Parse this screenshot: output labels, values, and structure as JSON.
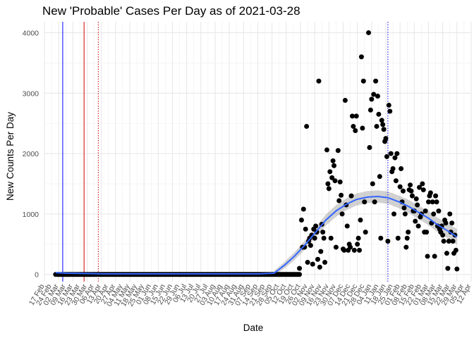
{
  "chart_data": {
    "type": "scatter",
    "title": "New 'Probable' Cases Per Day as of 2021-03-28",
    "xlabel": "Date",
    "ylabel": "New Counts Per Day",
    "x_range": [
      "2020-02-17",
      "2021-04-12"
    ],
    "ylim": [
      -120,
      4180
    ],
    "y_ticks": [
      0,
      1000,
      2000,
      3000,
      4000
    ],
    "x_tick_labels": [
      "17 Feb",
      "02 Mar",
      "16 Mar",
      "30 Mar",
      "13 Apr",
      "27 Apr",
      "11 May",
      "25 May",
      "08 Jun",
      "22 Jun",
      "06 Jul",
      "20 Jul",
      "03 Aug",
      "17 Aug",
      "31 Aug",
      "14 Sep",
      "28 Sep",
      "12 Oct",
      "26 Oct",
      "09 Nov",
      "23 Nov",
      "07 Dec",
      "21 Dec",
      "04 Jan",
      "18 Jan",
      "01 Feb",
      "15 Feb",
      "01 Mar",
      "15 Mar",
      "29 Mar",
      "12 Apr"
    ],
    "x_tick_labels_secondary": [
      "24 Feb",
      "09 Mar",
      "23 Mar",
      "06 Apr",
      "20 Apr",
      "04 May",
      "18 May",
      "01 Jun",
      "15 Jun",
      "29 Jun",
      "13 Jul",
      "27 Jul",
      "10 Aug",
      "24 Aug",
      "07 Sep",
      "21 Sep",
      "05 Oct",
      "19 Oct",
      "02 Nov",
      "16 Nov",
      "30 Nov",
      "14 Dec",
      "28 Dec",
      "11 Jan",
      "25 Jan",
      "08 Feb",
      "22 Feb",
      "08 Mar",
      "22 Mar",
      "05 Apr"
    ],
    "grid": true,
    "vlines": [
      {
        "date": "2020-03-06",
        "color": "#0000ff",
        "style": "solid"
      },
      {
        "date": "2020-03-27",
        "color": "#d00000",
        "style": "solid"
      },
      {
        "date": "2020-04-10",
        "color": "#d00000",
        "style": "dotted"
      },
      {
        "date": "2021-01-20",
        "color": "#0000ff",
        "style": "dotted"
      }
    ],
    "series": [
      {
        "type": "scatter",
        "color": "#000000",
        "zeros_from": "2020-03-01",
        "zeros_to": "2020-10-25",
        "points": [
          [
            "2020-02-28",
            0
          ],
          [
            "2020-10-25",
            100
          ],
          [
            "2020-10-27",
            900
          ],
          [
            "2020-10-28",
            450
          ],
          [
            "2020-10-29",
            1080
          ],
          [
            "2020-10-30",
            450
          ],
          [
            "2020-10-31",
            750
          ],
          [
            "2020-11-01",
            2450
          ],
          [
            "2020-11-02",
            200
          ],
          [
            "2020-11-03",
            550
          ],
          [
            "2020-11-04",
            600
          ],
          [
            "2020-11-05",
            480
          ],
          [
            "2020-11-06",
            650
          ],
          [
            "2020-11-07",
            170
          ],
          [
            "2020-11-08",
            750
          ],
          [
            "2020-11-09",
            600
          ],
          [
            "2020-11-10",
            800
          ],
          [
            "2020-11-11",
            700
          ],
          [
            "2020-11-12",
            250
          ],
          [
            "2020-11-13",
            3200
          ],
          [
            "2020-11-14",
            120
          ],
          [
            "2020-11-15",
            380
          ],
          [
            "2020-11-16",
            830
          ],
          [
            "2020-11-17",
            700
          ],
          [
            "2020-11-18",
            600
          ],
          [
            "2020-11-19",
            200
          ],
          [
            "2020-11-21",
            2060
          ],
          [
            "2020-11-22",
            1500
          ],
          [
            "2020-11-23",
            1420
          ],
          [
            "2020-11-24",
            1700
          ],
          [
            "2020-11-25",
            600
          ],
          [
            "2020-11-26",
            1600
          ],
          [
            "2020-11-27",
            1880
          ],
          [
            "2020-11-28",
            1800
          ],
          [
            "2020-11-29",
            1550
          ],
          [
            "2020-11-30",
            450
          ],
          [
            "2020-12-02",
            2050
          ],
          [
            "2020-12-03",
            1220
          ],
          [
            "2020-12-04",
            1530
          ],
          [
            "2020-12-05",
            1310
          ],
          [
            "2020-12-06",
            1000
          ],
          [
            "2020-12-07",
            420
          ],
          [
            "2020-12-08",
            400
          ],
          [
            "2020-12-09",
            2880
          ],
          [
            "2020-12-10",
            1150
          ],
          [
            "2020-12-11",
            800
          ],
          [
            "2020-12-12",
            400
          ],
          [
            "2020-12-13",
            500
          ],
          [
            "2020-12-14",
            450
          ],
          [
            "2020-12-15",
            1300
          ],
          [
            "2020-12-16",
            2620
          ],
          [
            "2020-12-17",
            2450
          ],
          [
            "2020-12-18",
            400
          ],
          [
            "2020-12-19",
            2380
          ],
          [
            "2020-12-20",
            2620
          ],
          [
            "2020-12-21",
            500
          ],
          [
            "2020-12-22",
            600
          ],
          [
            "2020-12-23",
            400
          ],
          [
            "2020-12-24",
            900
          ],
          [
            "2020-12-25",
            3600
          ],
          [
            "2020-12-26",
            2420
          ],
          [
            "2020-12-27",
            3200
          ],
          [
            "2020-12-28",
            1200
          ],
          [
            "2020-12-29",
            700
          ],
          [
            "2021-01-01",
            4000
          ],
          [
            "2021-01-02",
            2100
          ],
          [
            "2021-01-03",
            2720
          ],
          [
            "2021-01-04",
            2900
          ],
          [
            "2021-01-05",
            1500
          ],
          [
            "2021-01-06",
            2980
          ],
          [
            "2021-01-07",
            1200
          ],
          [
            "2021-01-08",
            3200
          ],
          [
            "2021-01-09",
            2450
          ],
          [
            "2021-01-10",
            2950
          ],
          [
            "2021-01-11",
            2650
          ],
          [
            "2021-01-12",
            1620
          ],
          [
            "2021-01-13",
            600
          ],
          [
            "2021-01-14",
            2550
          ],
          [
            "2021-01-15",
            2480
          ],
          [
            "2021-01-16",
            2400
          ],
          [
            "2021-01-17",
            2200
          ],
          [
            "2021-01-18",
            2250
          ],
          [
            "2021-01-19",
            1950
          ],
          [
            "2021-01-20",
            550
          ],
          [
            "2021-01-21",
            2800
          ],
          [
            "2021-01-22",
            2700
          ],
          [
            "2021-01-23",
            2000
          ],
          [
            "2021-01-24",
            1700
          ],
          [
            "2021-01-25",
            1750
          ],
          [
            "2021-01-26",
            1000
          ],
          [
            "2021-01-27",
            1930
          ],
          [
            "2021-01-28",
            1550
          ],
          [
            "2021-01-29",
            2000
          ],
          [
            "2021-01-30",
            600
          ],
          [
            "2021-02-01",
            1450
          ],
          [
            "2021-02-02",
            1750
          ],
          [
            "2021-02-03",
            1200
          ],
          [
            "2021-02-04",
            1380
          ],
          [
            "2021-02-05",
            1100
          ],
          [
            "2021-02-06",
            1000
          ],
          [
            "2021-02-07",
            450
          ],
          [
            "2021-02-08",
            600
          ],
          [
            "2021-02-09",
            700
          ],
          [
            "2021-02-10",
            1400
          ],
          [
            "2021-02-11",
            1480
          ],
          [
            "2021-02-12",
            1380
          ],
          [
            "2021-02-13",
            1300
          ],
          [
            "2021-02-14",
            1050
          ],
          [
            "2021-02-15",
            1050
          ],
          [
            "2021-02-16",
            880
          ],
          [
            "2021-02-17",
            1250
          ],
          [
            "2021-02-18",
            1150
          ],
          [
            "2021-02-19",
            800
          ],
          [
            "2021-02-20",
            1440
          ],
          [
            "2021-02-21",
            950
          ],
          [
            "2021-02-22",
            1000
          ],
          [
            "2021-02-23",
            1500
          ],
          [
            "2021-02-24",
            1400
          ],
          [
            "2021-02-25",
            700
          ],
          [
            "2021-02-26",
            1050
          ],
          [
            "2021-02-27",
            700
          ],
          [
            "2021-02-28",
            300
          ],
          [
            "2021-03-01",
            1200
          ],
          [
            "2021-03-02",
            1300
          ],
          [
            "2021-03-03",
            1350
          ],
          [
            "2021-03-04",
            850
          ],
          [
            "2021-03-05",
            1200
          ],
          [
            "2021-03-06",
            1000
          ],
          [
            "2021-03-07",
            300
          ],
          [
            "2021-03-08",
            1300
          ],
          [
            "2021-03-09",
            1200
          ],
          [
            "2021-03-10",
            800
          ],
          [
            "2021-03-11",
            1050
          ],
          [
            "2021-03-12",
            750
          ],
          [
            "2021-03-13",
            700
          ],
          [
            "2021-03-14",
            800
          ],
          [
            "2021-03-15",
            650
          ],
          [
            "2021-03-16",
            550
          ],
          [
            "2021-03-17",
            900
          ],
          [
            "2021-03-18",
            850
          ],
          [
            "2021-03-19",
            350
          ],
          [
            "2021-03-20",
            100
          ],
          [
            "2021-03-21",
            550
          ],
          [
            "2021-03-22",
            1000
          ],
          [
            "2021-03-23",
            700
          ],
          [
            "2021-03-24",
            850
          ],
          [
            "2021-03-25",
            550
          ],
          [
            "2021-03-26",
            350
          ],
          [
            "2021-03-27",
            650
          ],
          [
            "2021-03-28",
            400
          ],
          [
            "2021-03-29",
            90
          ]
        ]
      },
      {
        "type": "smooth",
        "color": "#3366ff",
        "band_color": "#999999",
        "curve": [
          [
            "2020-02-28",
            30
          ],
          [
            "2020-03-10",
            20
          ],
          [
            "2020-04-15",
            10
          ],
          [
            "2020-06-01",
            10
          ],
          [
            "2020-08-01",
            10
          ],
          [
            "2020-09-15",
            10
          ],
          [
            "2020-09-30",
            20
          ],
          [
            "2020-10-10",
            150
          ],
          [
            "2020-10-20",
            300
          ],
          [
            "2020-10-31",
            500
          ],
          [
            "2020-11-10",
            700
          ],
          [
            "2020-11-20",
            900
          ],
          [
            "2020-11-30",
            1050
          ],
          [
            "2020-12-10",
            1160
          ],
          [
            "2020-12-20",
            1240
          ],
          [
            "2020-12-31",
            1280
          ],
          [
            "2021-01-10",
            1290
          ],
          [
            "2021-01-20",
            1270
          ],
          [
            "2021-01-31",
            1200
          ],
          [
            "2021-02-10",
            1120
          ],
          [
            "2021-02-20",
            1020
          ],
          [
            "2021-03-01",
            930
          ],
          [
            "2021-03-10",
            820
          ],
          [
            "2021-03-20",
            720
          ],
          [
            "2021-03-29",
            620
          ]
        ],
        "band_halfwidth": [
          [
            "2020-09-30",
            40
          ],
          [
            "2020-10-15",
            60
          ],
          [
            "2020-11-15",
            90
          ],
          [
            "2020-12-15",
            100
          ],
          [
            "2021-01-15",
            100
          ],
          [
            "2021-02-15",
            110
          ],
          [
            "2021-03-15",
            120
          ],
          [
            "2021-03-29",
            130
          ]
        ]
      }
    ]
  }
}
